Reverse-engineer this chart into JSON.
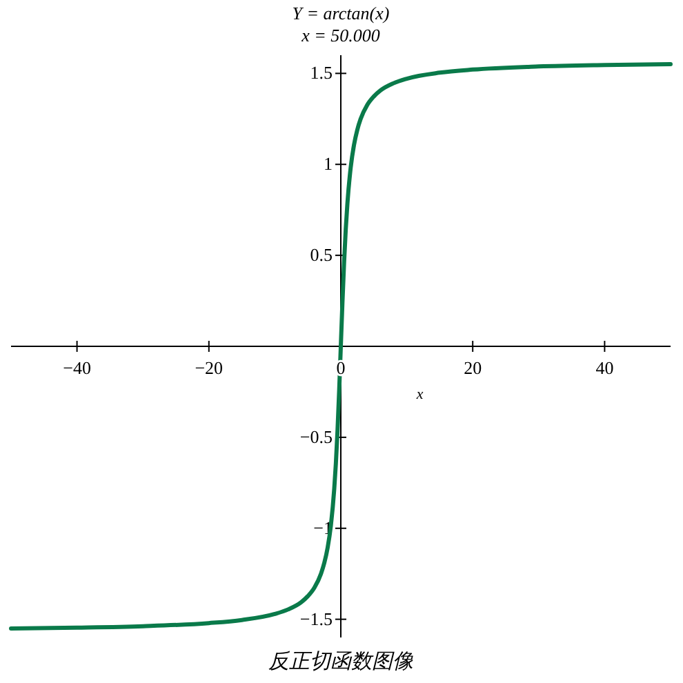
{
  "chart_data": {
    "type": "line",
    "title": "Y = arctan(x)",
    "subtitle": "x = 50.000",
    "xlabel": "x",
    "annotations": [
      "反正切函数图像"
    ],
    "x": [
      -50,
      -40,
      -30,
      -20,
      -15,
      -10,
      -8,
      -6,
      -5,
      -4,
      -3,
      -2.5,
      -2,
      -1.5,
      -1,
      -0.75,
      -0.5,
      -0.25,
      0,
      0.25,
      0.5,
      0.75,
      1,
      1.5,
      2,
      2.5,
      3,
      4,
      5,
      6,
      8,
      10,
      15,
      20,
      30,
      40,
      50
    ],
    "series": [
      {
        "color": "#0a7a4a",
        "values": [
          -1.551,
          -1.546,
          -1.538,
          -1.521,
          -1.504,
          -1.471,
          -1.446,
          -1.406,
          -1.373,
          -1.326,
          -1.249,
          -1.19,
          -1.107,
          -0.983,
          -0.785,
          -0.644,
          -0.464,
          -0.245,
          0,
          0.245,
          0.464,
          0.644,
          0.785,
          0.983,
          1.107,
          1.19,
          1.249,
          1.326,
          1.373,
          1.406,
          1.446,
          1.471,
          1.504,
          1.521,
          1.538,
          1.546,
          1.551
        ]
      }
    ],
    "xlim": [
      -50,
      50
    ],
    "ylim": [
      -1.6,
      1.6
    ],
    "xticks": [
      {
        "value": -40,
        "label": "−40"
      },
      {
        "value": -20,
        "label": "−20"
      },
      0,
      20,
      40
    ],
    "yticks": [
      {
        "value": -1.5,
        "label": "−1.5"
      },
      {
        "value": -1,
        "label": "−1"
      },
      {
        "value": -0.5,
        "label": "−0.5"
      },
      0.5,
      1,
      1.5
    ]
  }
}
